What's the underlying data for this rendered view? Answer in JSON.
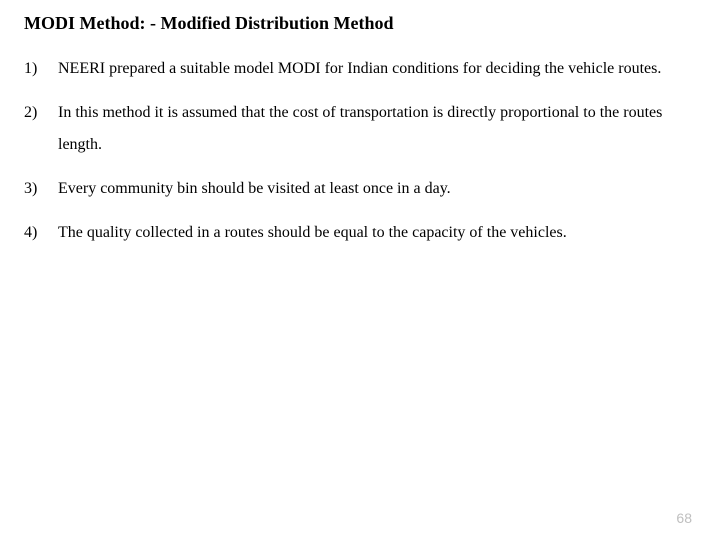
{
  "title": "MODI Method: - Modified Distribution Method",
  "items": [
    {
      "marker": "1)",
      "text": "NEERI prepared a suitable model MODI for Indian conditions for deciding the vehicle routes."
    },
    {
      "marker": "2)",
      "text": "In this method it is assumed that the cost of transportation is directly proportional to the routes length."
    },
    {
      "marker": "3)",
      "text": "Every community bin should be visited at least once in a day."
    },
    {
      "marker": "4)",
      "text": "The quality collected in a routes should be equal to the capacity of the vehicles."
    }
  ],
  "page_number": "68"
}
